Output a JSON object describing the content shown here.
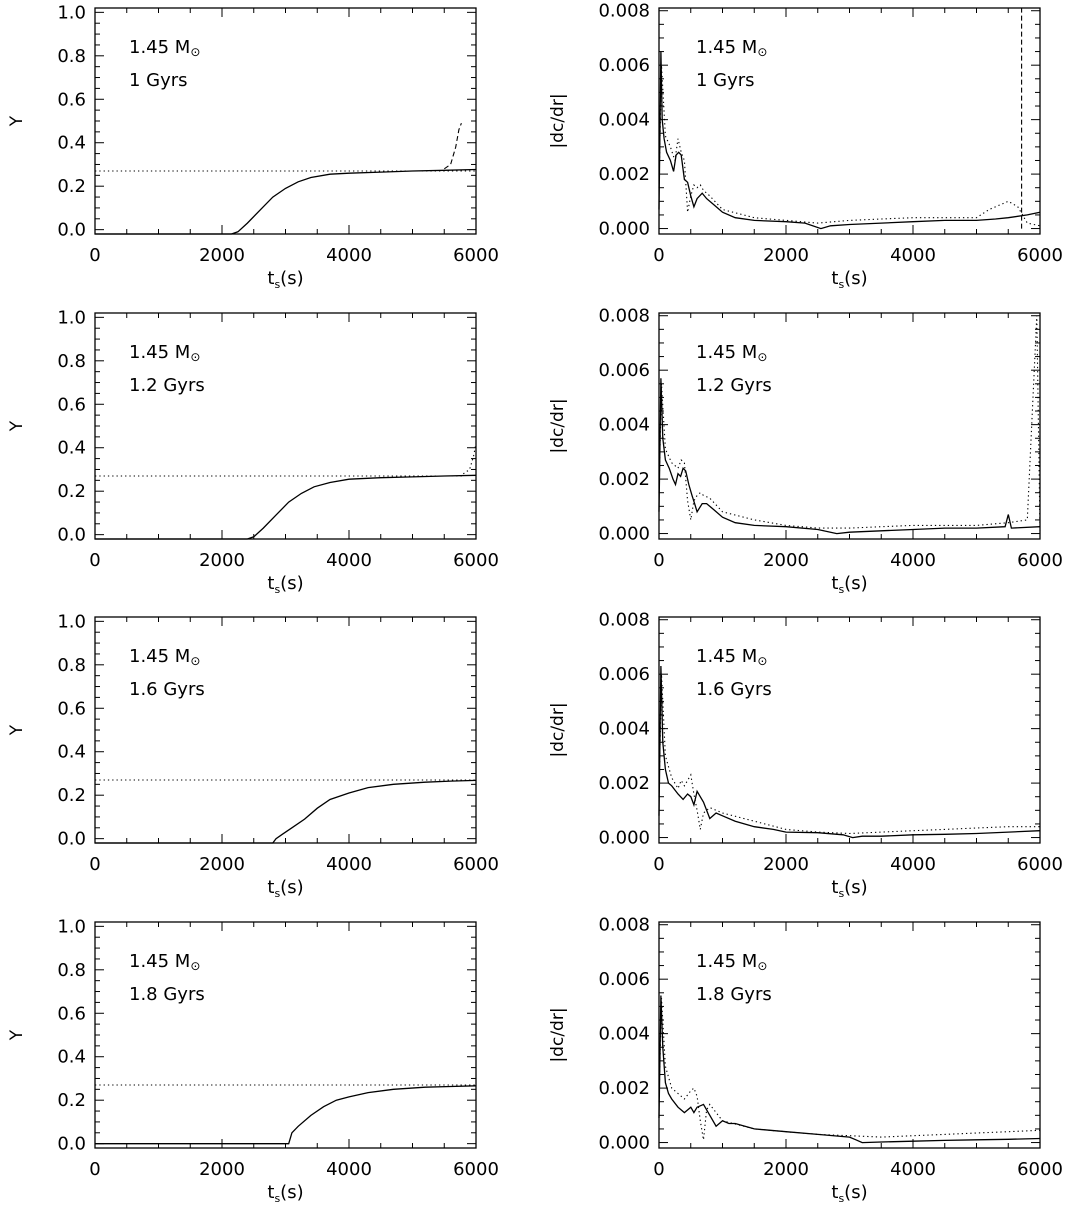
{
  "figure": {
    "background": "#ffffff",
    "ink": "#000000"
  },
  "chart_data": [
    {
      "type": "line",
      "panel": "Y-1",
      "ylabel": "Y",
      "xlabel": "t",
      "xlabel_sub": "s",
      "xlabel_tail": "(s)",
      "xlim": [
        0,
        6000
      ],
      "ylim": [
        -0.02,
        1.02
      ],
      "xticks": [
        0,
        2000,
        4000,
        6000
      ],
      "yticks": [
        0.0,
        0.2,
        0.4,
        0.6,
        0.8,
        1.0
      ],
      "tick_format": "1",
      "annotation": {
        "mass": "1.45 M",
        "mass_sym": "⊙",
        "age": "1 Gyrs"
      },
      "series": [
        {
          "style": "solid",
          "x": [
            0,
            2150,
            2250,
            2400,
            2600,
            2800,
            3000,
            3200,
            3400,
            3700,
            4000,
            4500,
            5000,
            5500,
            6000
          ],
          "y": [
            -0.02,
            -0.02,
            -0.01,
            0.03,
            0.09,
            0.15,
            0.19,
            0.22,
            0.24,
            0.255,
            0.26,
            0.265,
            0.27,
            0.273,
            0.277
          ]
        },
        {
          "style": "dotted",
          "x": [
            0,
            6000
          ],
          "y": [
            0.27,
            0.27
          ]
        },
        {
          "style": "dashed",
          "x": [
            5500,
            5600,
            5680,
            5730,
            5770
          ],
          "y": [
            0.28,
            0.3,
            0.38,
            0.46,
            0.49
          ]
        }
      ]
    },
    {
      "type": "line",
      "panel": "G-1",
      "ylabel": "|dc/dr|",
      "xlabel": "t",
      "xlabel_sub": "s",
      "xlabel_tail": "(s)",
      "xlim": [
        0,
        6000
      ],
      "ylim": [
        -0.0002,
        0.0081
      ],
      "xticks": [
        0,
        2000,
        4000,
        6000
      ],
      "yticks": [
        0.0,
        0.002,
        0.004,
        0.006,
        0.008
      ],
      "tick_format": "3",
      "annotation": {
        "mass": "1.45 M",
        "mass_sym": "⊙",
        "age": "1 Gyrs"
      },
      "series": [
        {
          "style": "solid",
          "x": [
            0,
            30,
            50,
            80,
            120,
            180,
            230,
            270,
            310,
            350,
            400,
            450,
            500,
            550,
            600,
            680,
            750,
            850,
            1000,
            1200,
            1500,
            2000,
            2300,
            2550,
            2700,
            3000,
            3500,
            4000,
            4500,
            5000,
            5300,
            5500,
            5800,
            6000
          ],
          "y": [
            0.0007,
            0.0065,
            0.004,
            0.0033,
            0.0028,
            0.0025,
            0.0021,
            0.0027,
            0.0028,
            0.0027,
            0.0018,
            0.0017,
            0.0012,
            0.0008,
            0.0011,
            0.0013,
            0.0011,
            0.0009,
            0.0006,
            0.0004,
            0.0003,
            0.00025,
            0.0002,
            0.0,
            0.0001,
            0.00015,
            0.0002,
            0.00025,
            0.0003,
            0.0003,
            0.00035,
            0.0004,
            0.0005,
            0.0006
          ]
        },
        {
          "style": "dotted",
          "x": [
            0,
            40,
            100,
            180,
            250,
            300,
            350,
            400,
            450,
            500,
            550,
            600,
            650,
            700,
            800,
            1000,
            1500,
            2000,
            2500,
            3000,
            3500,
            4000,
            4500,
            5000,
            5200,
            5500,
            5650,
            5800,
            6000
          ],
          "y": [
            0.0015,
            0.006,
            0.0034,
            0.003,
            0.0025,
            0.0033,
            0.0028,
            0.0025,
            0.0006,
            0.0012,
            0.0016,
            0.0015,
            0.0016,
            0.0014,
            0.0012,
            0.0007,
            0.0004,
            0.0003,
            0.0002,
            0.0003,
            0.00035,
            0.0004,
            0.0004,
            0.0004,
            0.0007,
            0.001,
            0.0008,
            0.0002,
            0.0001
          ]
        },
        {
          "style": "dashed",
          "x": [
            5710,
            5710
          ],
          "y": [
            0.0,
            0.0081
          ]
        }
      ]
    },
    {
      "type": "line",
      "panel": "Y-2",
      "ylabel": "Y",
      "xlabel": "t",
      "xlabel_sub": "s",
      "xlabel_tail": "(s)",
      "xlim": [
        0,
        6000
      ],
      "ylim": [
        -0.02,
        1.02
      ],
      "xticks": [
        0,
        2000,
        4000,
        6000
      ],
      "yticks": [
        0.0,
        0.2,
        0.4,
        0.6,
        0.8,
        1.0
      ],
      "tick_format": "1",
      "annotation": {
        "mass": "1.45 M",
        "mass_sym": "⊙",
        "age": "1.2 Gyrs"
      },
      "series": [
        {
          "style": "solid",
          "x": [
            0,
            2400,
            2500,
            2650,
            2850,
            3050,
            3250,
            3450,
            3700,
            4000,
            4500,
            5000,
            5500,
            6000
          ],
          "y": [
            -0.02,
            -0.02,
            -0.01,
            0.03,
            0.09,
            0.15,
            0.19,
            0.22,
            0.24,
            0.255,
            0.262,
            0.266,
            0.27,
            0.273
          ]
        },
        {
          "style": "dotted",
          "x": [
            0,
            5800
          ],
          "y": [
            0.27,
            0.27
          ]
        },
        {
          "style": "dotted",
          "x": [
            5800,
            5900,
            5960,
            6000
          ],
          "y": [
            0.28,
            0.3,
            0.36,
            0.42
          ]
        }
      ]
    },
    {
      "type": "line",
      "panel": "G-2",
      "ylabel": "|dc/dr|",
      "xlabel": "t",
      "xlabel_sub": "s",
      "xlabel_tail": "(s)",
      "xlim": [
        0,
        6000
      ],
      "ylim": [
        -0.0002,
        0.0081
      ],
      "xticks": [
        0,
        2000,
        4000,
        6000
      ],
      "yticks": [
        0.0,
        0.002,
        0.004,
        0.006,
        0.008
      ],
      "tick_format": "3",
      "annotation": {
        "mass": "1.45 M",
        "mass_sym": "⊙",
        "age": "1.2 Gyrs"
      },
      "series": [
        {
          "style": "solid",
          "x": [
            0,
            30,
            60,
            100,
            160,
            220,
            260,
            300,
            340,
            380,
            420,
            470,
            520,
            560,
            600,
            680,
            750,
            850,
            1000,
            1200,
            1500,
            2000,
            2500,
            2800,
            3000,
            3500,
            4000,
            4500,
            5000,
            5450,
            5500,
            5550,
            6000
          ],
          "y": [
            0.0008,
            0.0057,
            0.0035,
            0.0027,
            0.0024,
            0.002,
            0.0018,
            0.0022,
            0.0021,
            0.0024,
            0.0023,
            0.0018,
            0.0014,
            0.0011,
            0.0008,
            0.0011,
            0.0011,
            0.0009,
            0.0006,
            0.0004,
            0.0003,
            0.00025,
            0.00015,
            0.0,
            5e-05,
            0.0001,
            0.00015,
            0.0002,
            0.0002,
            0.00025,
            0.0007,
            0.0002,
            0.00025
          ]
        },
        {
          "style": "dotted",
          "x": [
            0,
            40,
            100,
            200,
            300,
            350,
            400,
            450,
            500,
            550,
            600,
            650,
            700,
            800,
            1000,
            1500,
            2000,
            2500,
            3000,
            3500,
            4000,
            4500,
            5000,
            5500,
            5800,
            5950,
            6000
          ],
          "y": [
            0.0015,
            0.0055,
            0.0031,
            0.0026,
            0.0024,
            0.0027,
            0.0026,
            0.0012,
            0.0005,
            0.0012,
            0.0014,
            0.0015,
            0.0014,
            0.0013,
            0.0008,
            0.0005,
            0.0003,
            0.0002,
            0.0002,
            0.00025,
            0.0003,
            0.0003,
            0.0003,
            0.0004,
            0.0005,
            0.008,
            0.0001
          ]
        }
      ]
    },
    {
      "type": "line",
      "panel": "Y-3",
      "ylabel": "Y",
      "xlabel": "t",
      "xlabel_sub": "s",
      "xlabel_tail": "(s)",
      "xlim": [
        0,
        6000
      ],
      "ylim": [
        -0.02,
        1.02
      ],
      "xticks": [
        0,
        2000,
        4000,
        6000
      ],
      "yticks": [
        0.0,
        0.2,
        0.4,
        0.6,
        0.8,
        1.0
      ],
      "tick_format": "1",
      "annotation": {
        "mass": "1.45 M",
        "mass_sym": "⊙",
        "age": "1.6 Gyrs"
      },
      "series": [
        {
          "style": "solid",
          "x": [
            0,
            2800,
            2850,
            2950,
            3100,
            3300,
            3500,
            3700,
            4000,
            4300,
            4700,
            5200,
            5600,
            6000
          ],
          "y": [
            -0.02,
            -0.02,
            0.0,
            0.02,
            0.05,
            0.09,
            0.14,
            0.18,
            0.21,
            0.235,
            0.25,
            0.26,
            0.265,
            0.268
          ]
        },
        {
          "style": "dotted",
          "x": [
            0,
            6000
          ],
          "y": [
            0.27,
            0.27
          ]
        }
      ]
    },
    {
      "type": "line",
      "panel": "G-3",
      "ylabel": "|dc/dr|",
      "xlabel": "t",
      "xlabel_sub": "s",
      "xlabel_tail": "(s)",
      "xlim": [
        0,
        6000
      ],
      "ylim": [
        -0.0002,
        0.0081
      ],
      "xticks": [
        0,
        2000,
        4000,
        6000
      ],
      "yticks": [
        0.0,
        0.002,
        0.004,
        0.006,
        0.008
      ],
      "tick_format": "3",
      "annotation": {
        "mass": "1.45 M",
        "mass_sym": "⊙",
        "age": "1.6 Gyrs"
      },
      "series": [
        {
          "style": "solid",
          "x": [
            0,
            30,
            60,
            100,
            150,
            200,
            300,
            380,
            450,
            500,
            550,
            600,
            700,
            800,
            900,
            1000,
            1200,
            1500,
            1800,
            2000,
            2500,
            2900,
            3050,
            3200,
            3500,
            4000,
            4500,
            5000,
            5500,
            6000
          ],
          "y": [
            0.0008,
            0.0063,
            0.0035,
            0.0025,
            0.002,
            0.0019,
            0.0016,
            0.0014,
            0.0016,
            0.0015,
            0.0012,
            0.0017,
            0.0013,
            0.0007,
            0.0009,
            0.0008,
            0.0006,
            0.0004,
            0.0003,
            0.0002,
            0.00018,
            0.0001,
            0.0,
            5e-05,
            5e-05,
            0.0001,
            0.00012,
            0.00015,
            0.0002,
            0.00025
          ]
        },
        {
          "style": "dotted",
          "x": [
            0,
            40,
            100,
            200,
            300,
            350,
            400,
            450,
            500,
            550,
            600,
            650,
            700,
            800,
            1000,
            1500,
            2000,
            2500,
            3000,
            3500,
            4000,
            4500,
            5000,
            5500,
            6000
          ],
          "y": [
            0.0015,
            0.006,
            0.003,
            0.0022,
            0.0018,
            0.0021,
            0.0019,
            0.0021,
            0.0023,
            0.0016,
            0.001,
            0.0003,
            0.0009,
            0.0011,
            0.0009,
            0.0006,
            0.0003,
            0.0002,
            0.00015,
            0.0002,
            0.00025,
            0.0003,
            0.00035,
            0.0004,
            0.0004
          ]
        }
      ]
    },
    {
      "type": "line",
      "panel": "Y-4",
      "ylabel": "Y",
      "xlabel": "t",
      "xlabel_sub": "s",
      "xlabel_tail": "(s)",
      "xlim": [
        0,
        6000
      ],
      "ylim": [
        -0.02,
        1.02
      ],
      "xticks": [
        0,
        2000,
        4000,
        6000
      ],
      "yticks": [
        0.0,
        0.2,
        0.4,
        0.6,
        0.8,
        1.0
      ],
      "tick_format": "1",
      "annotation": {
        "mass": "1.45 M",
        "mass_sym": "⊙",
        "age": "1.8 Gyrs"
      },
      "series": [
        {
          "style": "solid",
          "x": [
            0,
            3050,
            3100,
            3200,
            3400,
            3600,
            3800,
            4000,
            4300,
            4700,
            5200,
            5600,
            6000
          ],
          "y": [
            0.0,
            0.0,
            0.05,
            0.08,
            0.13,
            0.17,
            0.2,
            0.215,
            0.235,
            0.25,
            0.26,
            0.263,
            0.266
          ]
        },
        {
          "style": "dotted",
          "x": [
            0,
            6000
          ],
          "y": [
            0.27,
            0.27
          ]
        }
      ]
    },
    {
      "type": "line",
      "panel": "G-4",
      "ylabel": "|dc/dr|",
      "xlabel": "t",
      "xlabel_sub": "s",
      "xlabel_tail": "(s)",
      "xlim": [
        0,
        6000
      ],
      "ylim": [
        -0.0002,
        0.0081
      ],
      "xticks": [
        0,
        2000,
        4000,
        6000
      ],
      "yticks": [
        0.0,
        0.002,
        0.004,
        0.006,
        0.008
      ],
      "tick_format": "3",
      "annotation": {
        "mass": "1.45 M",
        "mass_sym": "⊙",
        "age": "1.8 Gyrs"
      },
      "series": [
        {
          "style": "solid",
          "x": [
            0,
            30,
            60,
            100,
            150,
            200,
            300,
            400,
            500,
            550,
            600,
            700,
            800,
            900,
            1000,
            1100,
            1200,
            1500,
            2000,
            2500,
            3000,
            3100,
            3200,
            3500,
            4000,
            4500,
            5000,
            5500,
            6000
          ],
          "y": [
            0.0009,
            0.0054,
            0.0035,
            0.0022,
            0.0018,
            0.0016,
            0.0013,
            0.0011,
            0.0013,
            0.0011,
            0.0013,
            0.0014,
            0.001,
            0.0006,
            0.0008,
            0.0007,
            0.0007,
            0.0005,
            0.0004,
            0.0003,
            0.0002,
            0.0001,
            0.0,
            2e-05,
            5e-05,
            8e-05,
            0.0001,
            0.00012,
            0.00015
          ]
        },
        {
          "style": "dotted",
          "x": [
            0,
            40,
            100,
            200,
            300,
            400,
            500,
            550,
            600,
            650,
            700,
            750,
            800,
            900,
            1000,
            1500,
            2000,
            2500,
            3000,
            3500,
            4000,
            4500,
            5000,
            5500,
            6000
          ],
          "y": [
            0.0015,
            0.0053,
            0.0028,
            0.002,
            0.0018,
            0.0016,
            0.0019,
            0.002,
            0.0017,
            0.0008,
            0.0001,
            0.0012,
            0.0014,
            0.0011,
            0.0008,
            0.0005,
            0.0004,
            0.0003,
            0.00025,
            0.0002,
            0.00025,
            0.0003,
            0.00035,
            0.0004,
            0.00045
          ]
        }
      ]
    }
  ]
}
